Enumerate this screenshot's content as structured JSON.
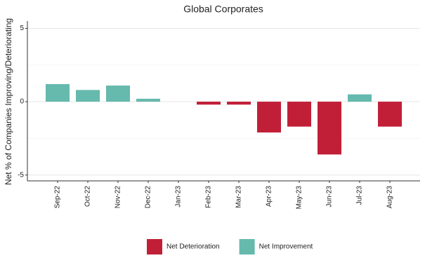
{
  "chart_data": {
    "type": "bar",
    "title": "Global Corporates",
    "y_label": "Net % of Companies Improving/Deteriorating",
    "categories": [
      "Sep-22",
      "Oct-22",
      "Nov-22",
      "Dec-22",
      "Jan-23",
      "Feb-23",
      "Mar-23",
      "Apr-23",
      "May-23",
      "Jun-23",
      "Jul-23",
      "Aug-23"
    ],
    "series": [
      {
        "name": "Net Deterioration",
        "color": "#c11f38",
        "values": [
          null,
          null,
          null,
          null,
          null,
          -0.2,
          -0.2,
          -2.1,
          -1.7,
          -3.6,
          null,
          -1.7
        ]
      },
      {
        "name": "Net Improvement",
        "color": "#66b9ad",
        "values": [
          1.2,
          0.8,
          1.1,
          0.2,
          null,
          null,
          null,
          null,
          null,
          null,
          0.5,
          null
        ]
      }
    ],
    "ylim": [
      -5.4,
      5.5
    ],
    "yticks": [
      -5,
      0,
      5
    ],
    "minor_gridlines": [
      -2.5,
      2.5
    ],
    "grid": true,
    "legend": "bottom"
  }
}
